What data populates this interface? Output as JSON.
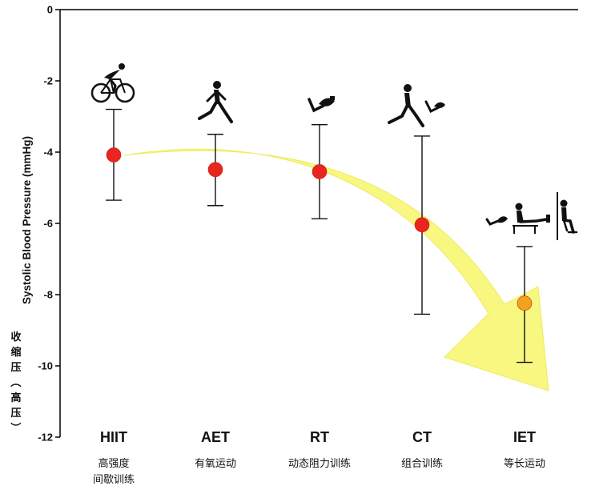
{
  "colors": {
    "arrow_fill": "#f8f77a",
    "arrow_stroke": "#eceb5a",
    "point_red": "#e8261f",
    "point_orange": "#f2a21e",
    "axis": "#000000"
  },
  "icons": [
    "cyclist-icon",
    "runner-icon",
    "arm-curl-icon",
    "runner-and-arm-curl-icon",
    "isometric-exercises-icon"
  ],
  "chart_data": {
    "type": "scatter",
    "title": "",
    "ylabel": "Systolic Blood Pressure (mmHg)",
    "ylabel_zh_line1": "收缩压",
    "ylabel_zh_line2": "（高压）",
    "ylim": [
      -12,
      0
    ],
    "yticks": [
      0,
      -2,
      -4,
      -6,
      -8,
      -10,
      -12
    ],
    "categories": [
      "HIIT",
      "AET",
      "RT",
      "CT",
      "IET"
    ],
    "categories_zh": [
      [
        "高强度",
        "间歇训练"
      ],
      [
        "有氧运动"
      ],
      [
        "动态阻力训练"
      ],
      [
        "组合训练"
      ],
      [
        "等长运动"
      ]
    ],
    "series": [
      {
        "values": [
          -4.08,
          -4.49,
          -4.55,
          -6.04,
          -8.24
        ],
        "ci_upper": [
          -2.8,
          -3.5,
          -3.23,
          -3.55,
          -6.65
        ],
        "ci_lower": [
          -5.35,
          -5.5,
          -5.87,
          -8.55,
          -9.9
        ]
      }
    ],
    "grid": false,
    "legend": "none",
    "annotation": "yellow trend arrow from HIIT down to IET"
  }
}
